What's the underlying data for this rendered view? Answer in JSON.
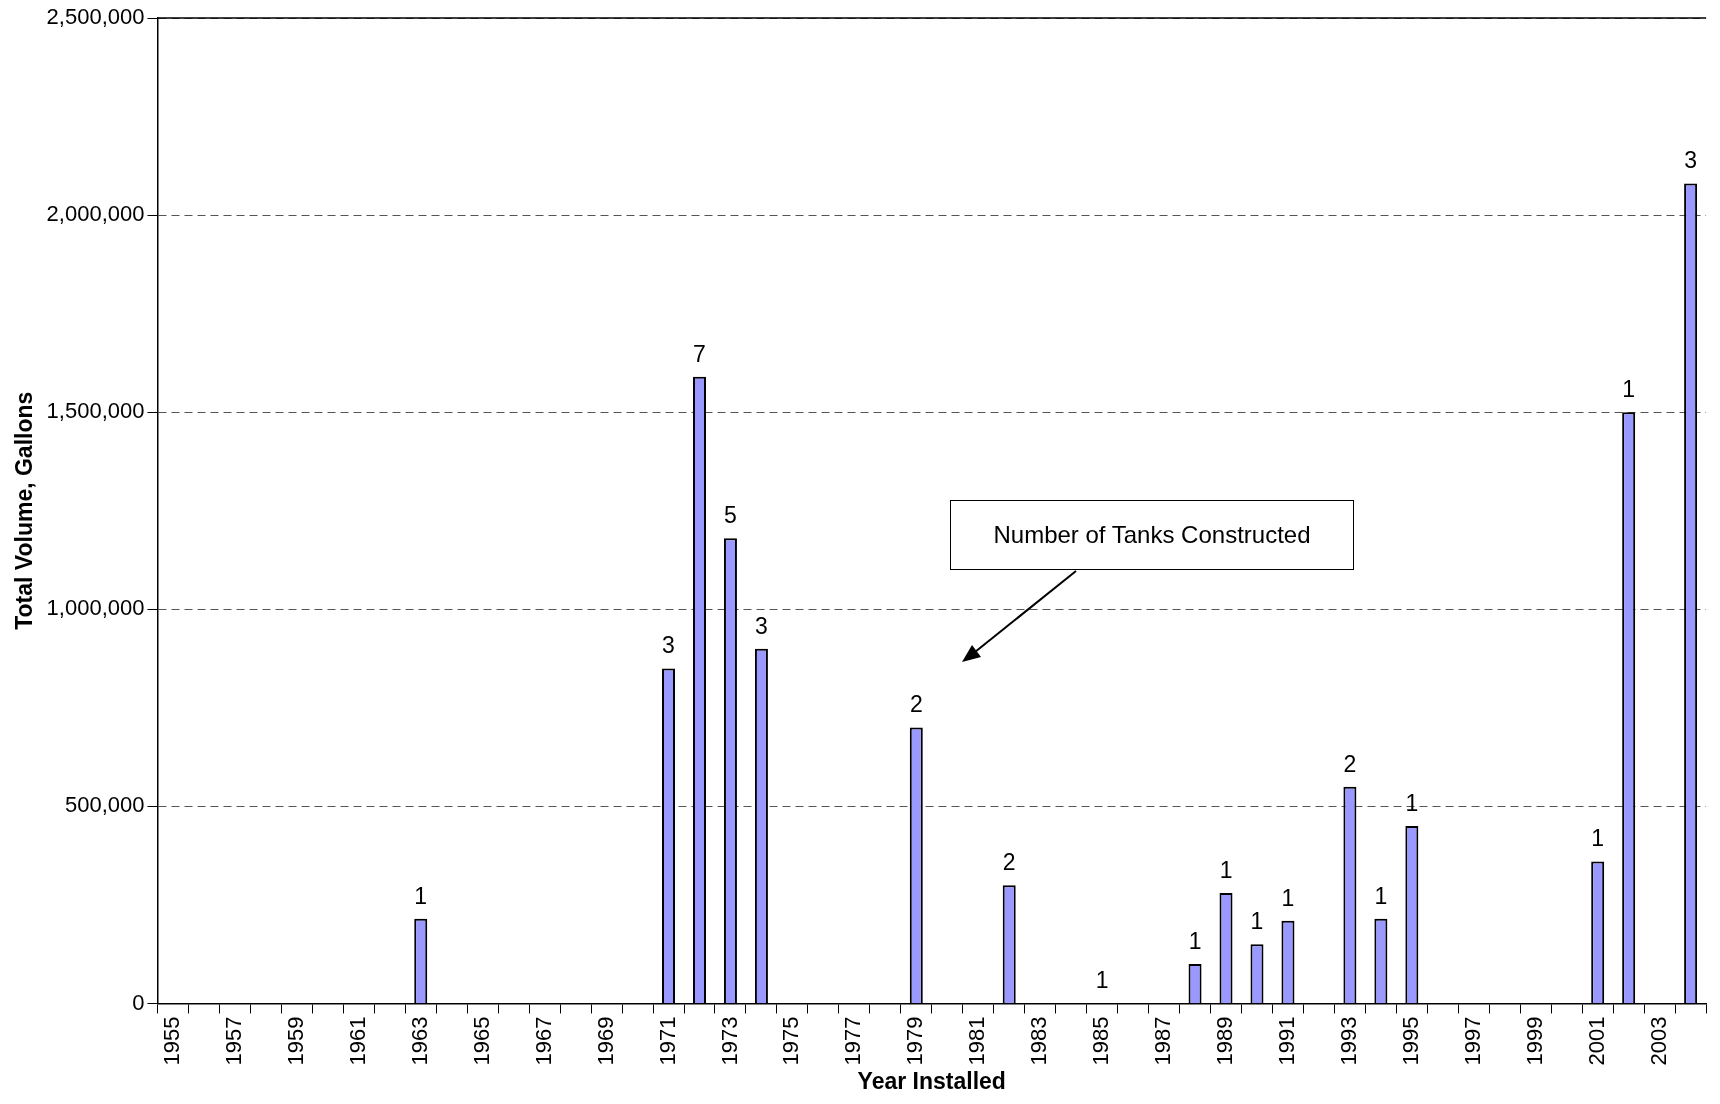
{
  "chart_data": {
    "type": "bar",
    "xlabel": "Year Installed",
    "ylabel": "Total Volume, Gallons",
    "categories": [
      "1955",
      null,
      "1957",
      null,
      "1959",
      null,
      "1961",
      null,
      "1963",
      null,
      "1965",
      null,
      "1967",
      null,
      "1969",
      null,
      "1971",
      null,
      "1973",
      null,
      "1975",
      null,
      "1977",
      null,
      "1979",
      null,
      "1981",
      null,
      "1983",
      null,
      "1985",
      null,
      "1987",
      null,
      "1989",
      null,
      "1991",
      null,
      "1993",
      null,
      "1995",
      null,
      "1997",
      null,
      "1999",
      null,
      "2001",
      null,
      "2003",
      null
    ],
    "values": [
      0,
      0,
      0,
      0,
      0,
      0,
      0,
      0,
      215000,
      0,
      0,
      0,
      0,
      0,
      0,
      0,
      850000,
      1590000,
      1180000,
      900000,
      0,
      0,
      0,
      0,
      700000,
      0,
      0,
      300000,
      0,
      0,
      0,
      0,
      0,
      100000,
      280000,
      150000,
      210000,
      0,
      550000,
      215000,
      450000,
      0,
      0,
      0,
      0,
      0,
      360000,
      1500000,
      0,
      2080000
    ],
    "color": "#9999ff",
    "ylim": [
      0,
      2500000
    ],
    "yticks": [
      0,
      {
        "value": 500000,
        "label": "500,000"
      },
      {
        "value": 1000000,
        "label": "1,000,000"
      },
      {
        "value": 1500000,
        "label": "1,500,000"
      },
      {
        "value": 2000000,
        "label": "2,000,000"
      },
      {
        "value": 2500000,
        "label": "2,500,000"
      }
    ],
    "grid": "y",
    "legend": false,
    "annotations": [
      "Number of Tanks Constructed",
      {
        "text": "1",
        "x": "1963",
        "y": 215000
      },
      {
        "text": "3",
        "x": "1971",
        "y": 850000
      },
      {
        "text": "7",
        "y": 1590000
      },
      {
        "text": "5",
        "x": "1973",
        "y": 1180000
      },
      {
        "text": "3",
        "y": 900000
      },
      {
        "text": "2",
        "x": "1979",
        "y": 700000
      },
      {
        "text": "2",
        "y": 300000
      },
      {
        "text": "1",
        "x": "1985",
        "y": 0
      },
      {
        "text": "1",
        "y": 100000
      },
      {
        "text": "1",
        "x": "1989",
        "y": 280000
      },
      {
        "text": "1",
        "y": 150000
      },
      {
        "text": "1",
        "x": "1991",
        "y": 210000
      },
      {
        "text": "2",
        "x": "1993",
        "y": 550000
      },
      {
        "text": "1",
        "y": 215000
      },
      {
        "text": "1",
        "x": "1995",
        "y": 450000
      },
      {
        "text": "1",
        "x": "2001",
        "y": 360000
      },
      {
        "text": "1",
        "y": 1500000
      },
      {
        "text": "3",
        "y": 2080000
      }
    ]
  }
}
